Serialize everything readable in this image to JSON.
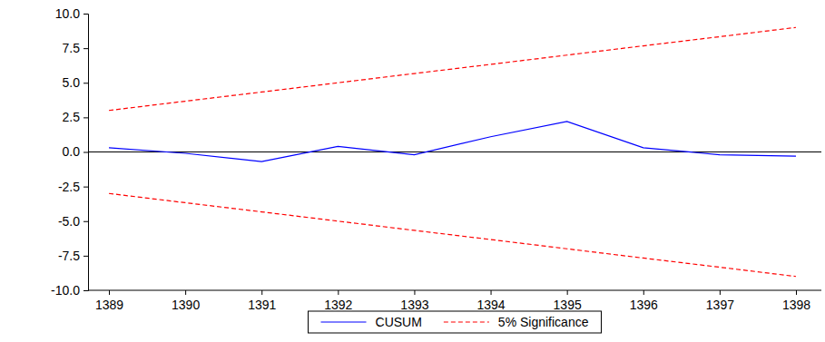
{
  "chart_data": {
    "type": "line",
    "x": [
      1389,
      1390,
      1391,
      1392,
      1393,
      1394,
      1395,
      1396,
      1397,
      1398
    ],
    "series": [
      {
        "name": "CUSUM",
        "color": "#0000ff",
        "line_style": "solid",
        "values": [
          0.3,
          -0.1,
          -0.7,
          0.4,
          -0.2,
          1.1,
          2.2,
          0.3,
          -0.2,
          -0.3
        ]
      },
      {
        "name": "5% Significance",
        "color": "#ff0000",
        "line_style": "dashed",
        "values": [
          3.0,
          3.67,
          4.33,
          5.0,
          5.67,
          6.33,
          7.0,
          7.67,
          8.33,
          9.0
        ],
        "lower_values": [
          -3.0,
          -3.67,
          -4.33,
          -5.0,
          -5.67,
          -6.33,
          -7.0,
          -7.67,
          -8.33,
          -9.0
        ]
      }
    ],
    "ylim": [
      -10,
      10
    ],
    "yticks": [
      {
        "value": -10,
        "label": "-10.0"
      },
      {
        "value": -7.5,
        "label": "-7.5"
      },
      {
        "value": -5,
        "label": "-5.0"
      },
      {
        "value": -2.5,
        "label": "-2.5"
      },
      {
        "value": 0,
        "label": "0.0"
      },
      {
        "value": 2.5,
        "label": "2.5"
      },
      {
        "value": 5,
        "label": "5.0"
      },
      {
        "value": 7.5,
        "label": "7.5"
      },
      {
        "value": 10,
        "label": "10.0"
      }
    ],
    "legend": "bottom"
  }
}
